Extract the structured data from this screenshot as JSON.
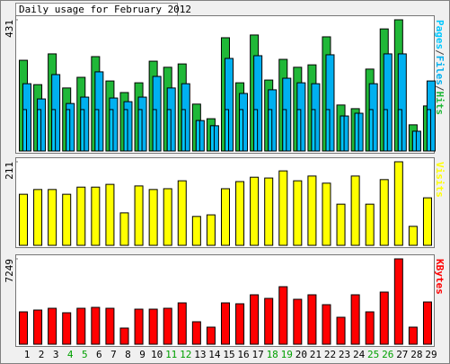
{
  "title": "Daily usage for February 2012",
  "chart_data": [
    {
      "type": "bar",
      "legend_separator": "/",
      "series": [
        {
          "name": "Pages",
          "color": "#00c8ff",
          "values": [
            136,
            136,
            136,
            136,
            136,
            136,
            136,
            136,
            136,
            136,
            136,
            136,
            100,
            83,
            136,
            136,
            136,
            136,
            136,
            136,
            136,
            136,
            115,
            124,
            136,
            136,
            136,
            65,
            136
          ]
        },
        {
          "name": "Files",
          "color": "#00b0f0",
          "values": [
            221,
            171,
            251,
            156,
            177,
            260,
            174,
            162,
            177,
            245,
            207,
            221,
            100,
            83,
            304,
            189,
            313,
            201,
            239,
            224,
            221,
            316,
            115,
            124,
            221,
            319,
            319,
            65,
            230
          ]
        },
        {
          "name": "Hits",
          "color": "#20b838",
          "values": [
            298,
            218,
            319,
            207,
            242,
            310,
            230,
            192,
            224,
            295,
            275,
            286,
            154,
            106,
            372,
            224,
            381,
            233,
            301,
            275,
            283,
            375,
            151,
            139,
            269,
            401,
            431,
            86,
            148
          ]
        }
      ],
      "ylim": [
        0,
        431
      ],
      "yticks": [
        431
      ]
    },
    {
      "type": "bar",
      "series": [
        {
          "name": "Visits",
          "color": "#ffff00",
          "values": [
            129,
            141,
            141,
            129,
            147,
            147,
            154,
            82,
            150,
            141,
            143,
            163,
            73,
            77,
            143,
            161,
            172,
            170,
            188,
            163,
            175,
            157,
            104,
            175,
            104,
            166,
            211,
            48,
            120
          ]
        }
      ],
      "ylim": [
        0,
        211
      ],
      "yticks": [
        211
      ]
    },
    {
      "type": "bar",
      "categories": [
        "1",
        "2",
        "3",
        "4",
        "5",
        "6",
        "7",
        "8",
        "9",
        "10",
        "11",
        "12",
        "13",
        "14",
        "15",
        "16",
        "17",
        "18",
        "19",
        "20",
        "21",
        "22",
        "23",
        "24",
        "25",
        "26",
        "27",
        "28",
        "29"
      ],
      "label_colors": [
        "#000000",
        "#000000",
        "#000000",
        "#00a000",
        "#00a000",
        "#000000",
        "#000000",
        "#000000",
        "#000000",
        "#000000",
        "#00a000",
        "#00a000",
        "#000000",
        "#000000",
        "#000000",
        "#000000",
        "#000000",
        "#00a000",
        "#00a000",
        "#000000",
        "#000000",
        "#000000",
        "#000000",
        "#000000",
        "#00a000",
        "#00a000",
        "#000000",
        "#000000",
        "#000000"
      ],
      "series": [
        {
          "name": "KBytes",
          "color": "#ff0000",
          "values": [
            2747,
            2900,
            3052,
            2671,
            3052,
            3129,
            3052,
            1373,
            2976,
            2976,
            3052,
            3510,
            1908,
            1450,
            3510,
            3434,
            4197,
            3892,
            4884,
            3815,
            4197,
            3357,
            2289,
            4197,
            2747,
            4426,
            7249,
            1450,
            3586
          ]
        }
      ],
      "ylim": [
        0,
        7249
      ],
      "yticks": [
        7249
      ]
    }
  ]
}
